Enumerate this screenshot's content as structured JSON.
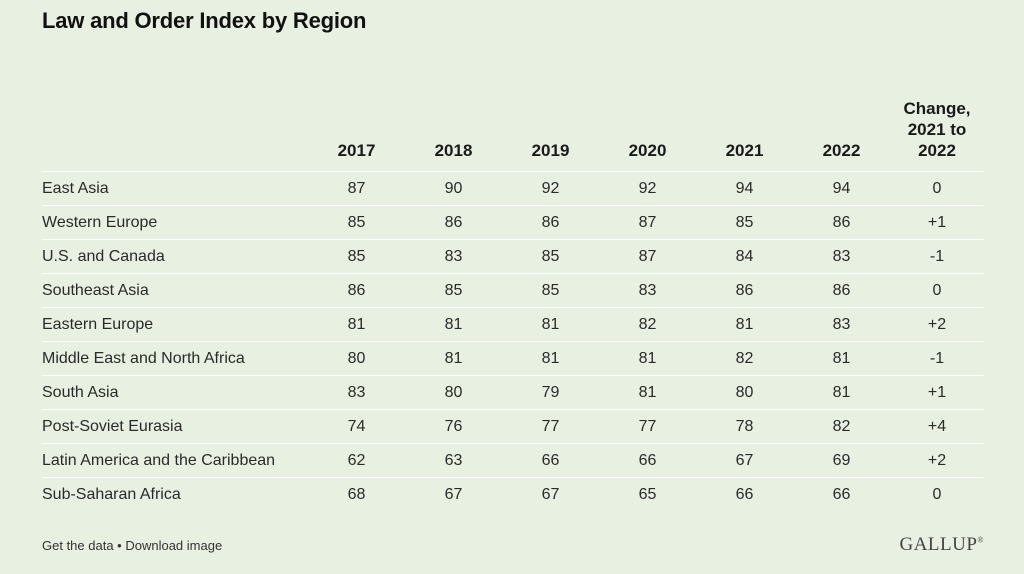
{
  "title": "Law and Order Index by Region",
  "footer": {
    "get_data": "Get the data",
    "separator": " • ",
    "download": "Download image"
  },
  "logo": "GALLUP",
  "chart_data": {
    "type": "table",
    "columns": [
      "2017",
      "2018",
      "2019",
      "2020",
      "2021",
      "2022"
    ],
    "change_header": [
      "Change,",
      "2021 to",
      "2022"
    ],
    "rows": [
      {
        "region": "East Asia",
        "values": [
          "87",
          "90",
          "92",
          "92",
          "94",
          "94"
        ],
        "change": "0"
      },
      {
        "region": "Western Europe",
        "values": [
          "85",
          "86",
          "86",
          "87",
          "85",
          "86"
        ],
        "change": "+1"
      },
      {
        "region": "U.S. and Canada",
        "values": [
          "85",
          "83",
          "85",
          "87",
          "84",
          "83"
        ],
        "change": "-1"
      },
      {
        "region": "Southeast Asia",
        "values": [
          "86",
          "85",
          "85",
          "83",
          "86",
          "86"
        ],
        "change": "0"
      },
      {
        "region": "Eastern Europe",
        "values": [
          "81",
          "81",
          "81",
          "82",
          "81",
          "83"
        ],
        "change": "+2"
      },
      {
        "region": "Middle East and North Africa",
        "values": [
          "80",
          "81",
          "81",
          "81",
          "82",
          "81"
        ],
        "change": "-1"
      },
      {
        "region": "South Asia",
        "values": [
          "83",
          "80",
          "79",
          "81",
          "80",
          "81"
        ],
        "change": "+1"
      },
      {
        "region": "Post-Soviet Eurasia",
        "values": [
          "74",
          "76",
          "77",
          "77",
          "78",
          "82"
        ],
        "change": "+4"
      },
      {
        "region": "Latin America and the Caribbean",
        "values": [
          "62",
          "63",
          "66",
          "66",
          "67",
          "69"
        ],
        "change": "+2"
      },
      {
        "region": "Sub-Saharan Africa",
        "values": [
          "68",
          "67",
          "67",
          "65",
          "66",
          "66"
        ],
        "change": "0"
      }
    ]
  }
}
